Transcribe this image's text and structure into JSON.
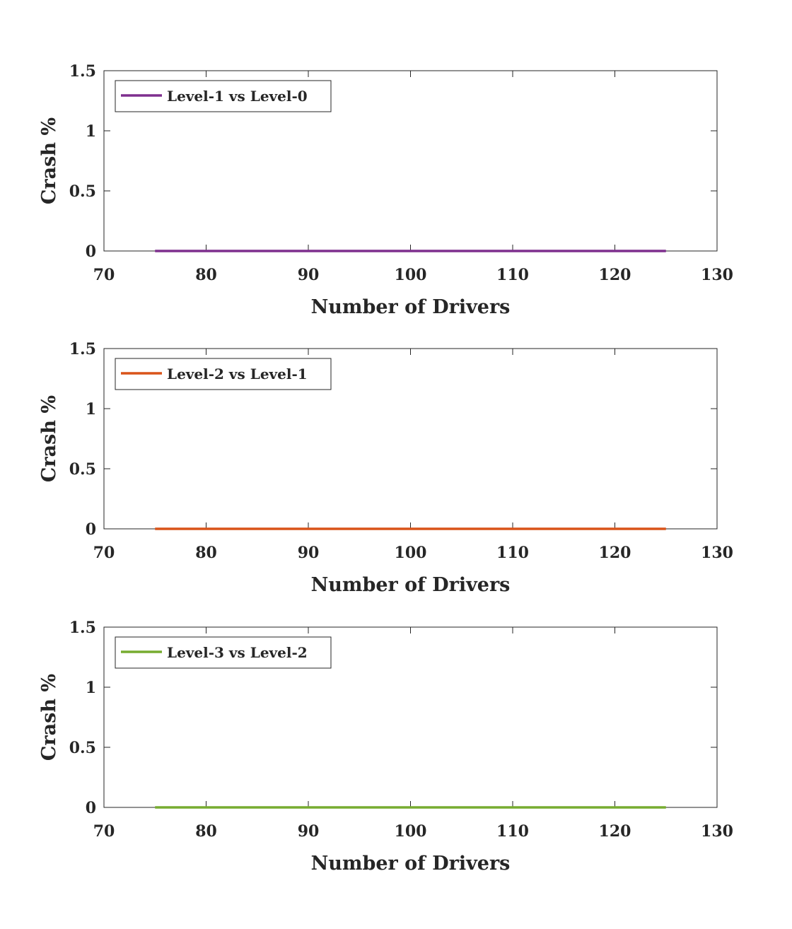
{
  "chart_data": [
    {
      "type": "line",
      "xlabel": "Number of Drivers",
      "ylabel": "Crash %",
      "xlim": [
        70,
        130
      ],
      "ylim": [
        0,
        1.5
      ],
      "xticks": [
        "70",
        "80",
        "90",
        "100",
        "110",
        "120",
        "130"
      ],
      "yticks": [
        "0",
        "0.5",
        "1",
        "1.5"
      ],
      "grid": false,
      "legend_position": "top-left",
      "series": [
        {
          "name": "Level-1 vs Level-0",
          "color": "#7E2F8E",
          "x": [
            75,
            125
          ],
          "y": [
            0,
            0
          ]
        }
      ]
    },
    {
      "type": "line",
      "xlabel": "Number of Drivers",
      "ylabel": "Crash %",
      "xlim": [
        70,
        130
      ],
      "ylim": [
        0,
        1.5
      ],
      "xticks": [
        "70",
        "80",
        "90",
        "100",
        "110",
        "120",
        "130"
      ],
      "yticks": [
        "0",
        "0.5",
        "1",
        "1.5"
      ],
      "grid": false,
      "legend_position": "top-left",
      "series": [
        {
          "name": "Level-2 vs Level-1",
          "color": "#D95319",
          "x": [
            75,
            125
          ],
          "y": [
            0,
            0
          ]
        }
      ]
    },
    {
      "type": "line",
      "xlabel": "Number of Drivers",
      "ylabel": "Crash %",
      "xlim": [
        70,
        130
      ],
      "ylim": [
        0,
        1.5
      ],
      "xticks": [
        "70",
        "80",
        "90",
        "100",
        "110",
        "120",
        "130"
      ],
      "yticks": [
        "0",
        "0.5",
        "1",
        "1.5"
      ],
      "grid": false,
      "legend_position": "top-left",
      "series": [
        {
          "name": "Level-3 vs Level-2",
          "color": "#77AC30",
          "x": [
            75,
            125
          ],
          "y": [
            0,
            0
          ]
        }
      ]
    }
  ]
}
